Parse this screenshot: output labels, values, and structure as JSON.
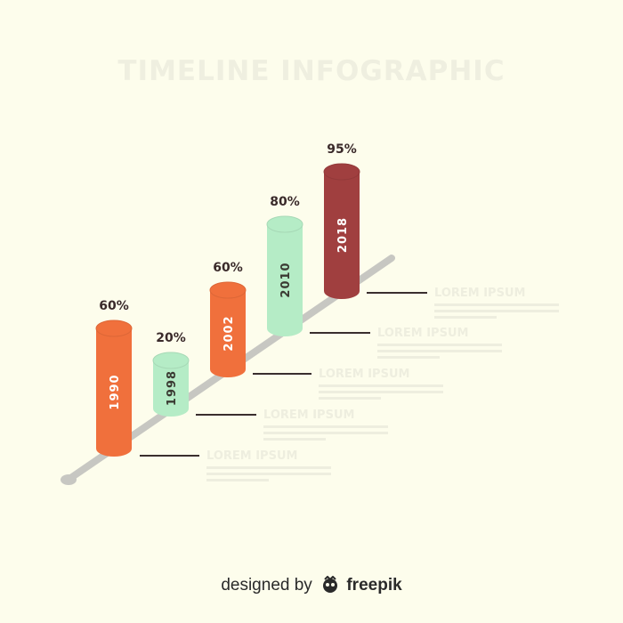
{
  "title": "TIMELINE INFOGRAPHIC",
  "colors": {
    "background": "#fdfdec",
    "orange": "#f0703c",
    "mint": "#b5ecc6",
    "maroon": "#a03f3f",
    "axis": "#c7c7c2",
    "percent_text": "#3a2a2a",
    "faded_text": "#eeeedf"
  },
  "steps": [
    {
      "year": "1990",
      "percent": "60%",
      "color": "orange",
      "label": "LOREM IPSUM"
    },
    {
      "year": "1998",
      "percent": "20%",
      "color": "mint",
      "label": "LOREM IPSUM"
    },
    {
      "year": "2002",
      "percent": "60%",
      "color": "orange",
      "label": "LOREM IPSUM"
    },
    {
      "year": "2010",
      "percent": "80%",
      "color": "mint",
      "label": "LOREM IPSUM"
    },
    {
      "year": "2018",
      "percent": "95%",
      "color": "maroon",
      "label": "LOREM IPSUM"
    }
  ],
  "credit": {
    "prefix": "designed by",
    "brand": "freepik"
  }
}
